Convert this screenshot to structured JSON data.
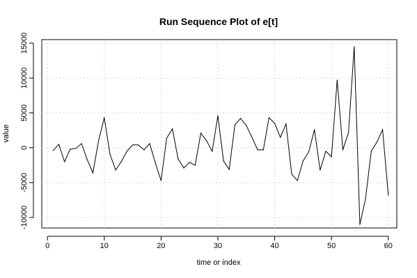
{
  "chart_data": {
    "type": "line",
    "title": "Run Sequence Plot of e[t]",
    "xlabel": "time or index",
    "ylabel": "value",
    "xlim": [
      -1,
      61.5
    ],
    "ylim": [
      -11500,
      15500
    ],
    "xticks": [
      0,
      10,
      20,
      30,
      40,
      50,
      60
    ],
    "yticks": [
      -10000,
      -5000,
      0,
      5000,
      10000,
      15000
    ],
    "grid": true,
    "x": [
      1,
      2,
      3,
      4,
      5,
      6,
      7,
      8,
      9,
      10,
      11,
      12,
      13,
      14,
      15,
      16,
      17,
      18,
      19,
      20,
      21,
      22,
      23,
      24,
      25,
      26,
      27,
      28,
      29,
      30,
      31,
      32,
      33,
      34,
      35,
      36,
      37,
      38,
      39,
      40,
      41,
      42,
      43,
      44,
      45,
      46,
      47,
      48,
      49,
      50,
      51,
      52,
      53,
      54,
      55,
      56,
      57,
      58,
      59,
      60
    ],
    "series": [
      {
        "values": [
          -400,
          500,
          -2000,
          -200,
          -100,
          600,
          -1700,
          -3600,
          1000,
          4300,
          -900,
          -3200,
          -2000,
          -500,
          400,
          400,
          -300,
          600,
          -2200,
          -4700,
          1400,
          2700,
          -1600,
          -2900,
          -2100,
          -2500,
          2100,
          1000,
          -500,
          4600,
          -1900,
          -3100,
          3300,
          4200,
          3200,
          1500,
          -300,
          -300,
          4300,
          3500,
          1500,
          3400,
          -3800,
          -4700,
          -1900,
          -600,
          2600,
          -3200,
          -500,
          -1300,
          9700,
          -300,
          2200,
          14500,
          -11000,
          -7300,
          -500,
          800,
          2600,
          -6800
        ]
      }
    ]
  }
}
